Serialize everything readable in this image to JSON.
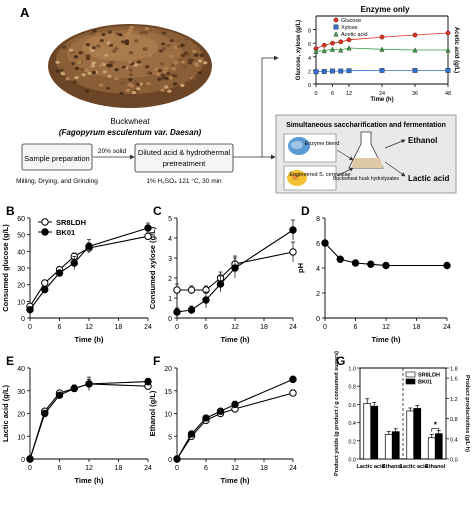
{
  "panel_a": {
    "letter": "A",
    "grain_name": "Buckwheat",
    "species": "(Fagopyrum esculentum var. Daesan)",
    "step1": "Sample preparation",
    "step1_sub": "Milling, Drying, and Grinding",
    "solid_label": "20% solid",
    "step2_line1": "Diluted acid & hydrothermal",
    "step2_line2": "pretreatment",
    "step2_sub": "1% H₂SO₄ 121 °C, 30 min",
    "ssf_title": "Simultaneous saccharification and fermentation",
    "enzyme_blend": "Enzyme blend",
    "engineered_strain": "Engineered S. cerevisiae",
    "hydrolysate_label": "Buckwheat husk hydrolysates",
    "product_ethanol": "Ethanol",
    "product_lactic": "Lactic acid",
    "colors": {
      "grain": "#7a5230",
      "inset_box": "#e8e8e8",
      "enzyme": "#6fa8dc",
      "yeast": "#f1c232"
    }
  },
  "chart_data": [
    {
      "id": "enzyme_only",
      "type": "line",
      "title": "Enzyme only",
      "xlabel": "Time (h)",
      "ylabel": "Glucose, xylose (g/L)",
      "ylabel2": "Acetic acid (g/L)",
      "xlim": [
        0,
        48
      ],
      "ylim": [
        0,
        10
      ],
      "xticks": [
        0,
        6,
        12,
        24,
        36,
        48
      ],
      "yticks": [
        0,
        2,
        4,
        6,
        8
      ],
      "series": [
        {
          "name": "Glucose",
          "color": "#e03020",
          "marker": "circle",
          "x": [
            0,
            3,
            6,
            9,
            12,
            24,
            36,
            48
          ],
          "values": [
            5.2,
            5.7,
            6.0,
            6.2,
            6.5,
            6.9,
            7.2,
            7.5
          ]
        },
        {
          "name": "Xylose",
          "color": "#3070d0",
          "marker": "square",
          "x": [
            0,
            3,
            6,
            9,
            12,
            24,
            36,
            48
          ],
          "values": [
            1.8,
            1.85,
            1.9,
            1.9,
            1.95,
            2.0,
            2.0,
            2.0
          ]
        },
        {
          "name": "Acetic acid",
          "color": "#3aa040",
          "marker": "triangle",
          "x": [
            0,
            3,
            6,
            9,
            12,
            24,
            36,
            48
          ],
          "values": [
            4.8,
            4.9,
            5.1,
            5.0,
            5.3,
            5.1,
            5.0,
            5.0
          ]
        }
      ]
    },
    {
      "id": "B",
      "letter": "B",
      "type": "line",
      "xlabel": "Time (h)",
      "ylabel": "Consumed glucose (g/L)",
      "xlim": [
        0,
        24
      ],
      "ylim": [
        0,
        60
      ],
      "xticks": [
        0,
        6,
        12,
        18,
        24
      ],
      "yticks": [
        0,
        10,
        20,
        30,
        40,
        50,
        60
      ],
      "series": [
        {
          "name": "SR8LDH",
          "marker": "open-circle",
          "x": [
            0,
            3,
            6,
            9,
            12,
            24
          ],
          "values": [
            7,
            21,
            29,
            37,
            42,
            49
          ],
          "err": [
            0,
            1.5,
            1.5,
            2,
            3,
            2
          ]
        },
        {
          "name": "BK01",
          "marker": "filled-circle",
          "x": [
            0,
            3,
            6,
            9,
            12,
            24
          ],
          "values": [
            5,
            17,
            27,
            33,
            43,
            54
          ],
          "err": [
            0,
            1.5,
            1.5,
            4,
            4,
            3
          ]
        }
      ]
    },
    {
      "id": "C",
      "letter": "C",
      "type": "line",
      "xlabel": "Time (h)",
      "ylabel": "Consumed xylose (g/L)",
      "xlim": [
        0,
        24
      ],
      "ylim": [
        0,
        5
      ],
      "xticks": [
        0,
        6,
        12,
        18,
        24
      ],
      "yticks": [
        0,
        1,
        2,
        3,
        4,
        5
      ],
      "series": [
        {
          "name": "SR8LDH",
          "marker": "open-circle",
          "x": [
            0,
            3,
            6,
            9,
            12,
            24
          ],
          "values": [
            1.4,
            1.4,
            1.4,
            2.0,
            2.7,
            3.3
          ],
          "err": [
            0.3,
            0.2,
            0.2,
            0.3,
            0.4,
            0.5
          ]
        },
        {
          "name": "BK01",
          "marker": "filled-circle",
          "x": [
            0,
            3,
            6,
            9,
            12,
            24
          ],
          "values": [
            0.3,
            0.4,
            0.9,
            1.7,
            2.5,
            4.4
          ],
          "err": [
            0.2,
            0.2,
            0.4,
            0.4,
            0.5,
            0.5
          ]
        }
      ]
    },
    {
      "id": "D",
      "letter": "D",
      "type": "line",
      "xlabel": "Time (h)",
      "ylabel": "pH",
      "xlim": [
        0,
        24
      ],
      "ylim": [
        0,
        8
      ],
      "xticks": [
        0,
        6,
        12,
        18,
        24
      ],
      "yticks": [
        0,
        2,
        4,
        6,
        8
      ],
      "series": [
        {
          "name": "BK01",
          "marker": "filled-circle",
          "x": [
            0,
            3,
            6,
            9,
            12,
            24
          ],
          "values": [
            6.0,
            4.7,
            4.4,
            4.3,
            4.2,
            4.2
          ],
          "err": [
            0,
            0,
            0,
            0,
            0,
            0
          ]
        }
      ]
    },
    {
      "id": "E",
      "letter": "E",
      "type": "line",
      "xlabel": "Time (h)",
      "ylabel": "Lactic acid (g/L)",
      "xlim": [
        0,
        24
      ],
      "ylim": [
        0,
        40
      ],
      "xticks": [
        0,
        6,
        12,
        18,
        24
      ],
      "yticks": [
        0,
        10,
        20,
        30,
        40
      ],
      "series": [
        {
          "name": "SR8LDH",
          "marker": "open-circle",
          "x": [
            0,
            3,
            6,
            9,
            12,
            24
          ],
          "values": [
            0,
            21,
            29,
            31,
            33,
            32
          ],
          "err": [
            0,
            1,
            1,
            1.5,
            2,
            1.5
          ]
        },
        {
          "name": "BK01",
          "marker": "filled-circle",
          "x": [
            0,
            3,
            6,
            9,
            12,
            24
          ],
          "values": [
            0,
            20,
            28,
            31,
            33,
            34
          ],
          "err": [
            0,
            1,
            1,
            1.5,
            3,
            1.5
          ]
        }
      ]
    },
    {
      "id": "F",
      "letter": "F",
      "type": "line",
      "xlabel": "Time (h)",
      "ylabel": "Ethanol (g/L)",
      "xlim": [
        0,
        24
      ],
      "ylim": [
        0,
        20
      ],
      "xticks": [
        0,
        6,
        12,
        18,
        24
      ],
      "yticks": [
        0,
        5,
        10,
        15,
        20
      ],
      "series": [
        {
          "name": "SR8LDH",
          "marker": "open-circle",
          "x": [
            0,
            3,
            6,
            9,
            12,
            24
          ],
          "values": [
            0,
            5,
            8.5,
            10,
            11,
            14.5
          ],
          "err": [
            0,
            0.3,
            0.5,
            0.5,
            0.7,
            0.7
          ]
        },
        {
          "name": "BK01",
          "marker": "filled-circle",
          "x": [
            0,
            3,
            6,
            9,
            12,
            24
          ],
          "values": [
            0,
            5.5,
            9,
            10.5,
            12,
            17.5
          ],
          "err": [
            0,
            0.3,
            0.5,
            0.5,
            0.7,
            0.7
          ]
        }
      ]
    },
    {
      "id": "G",
      "letter": "G",
      "type": "bar",
      "ylabel": "Product yields (g product / g consumed sugars)",
      "ylabel2": "Product productivities (g/L·h)",
      "ylim": [
        0,
        1.0
      ],
      "ylim2": [
        0,
        1.8
      ],
      "yticks": [
        0,
        0.2,
        0.4,
        0.6,
        0.8,
        1.0
      ],
      "yticks2": [
        0,
        0.4,
        0.8,
        1.2,
        1.6,
        1.8
      ],
      "categories": [
        "Lactic acid",
        "Ethanol",
        "Lactic acid",
        "Ethanol"
      ],
      "axis_of_category": [
        "left",
        "left",
        "right",
        "right"
      ],
      "significance": "*",
      "series": [
        {
          "name": "SR8LDH",
          "color": "#ffffff",
          "values": [
            0.61,
            0.27,
            0.95,
            0.42
          ],
          "err": [
            0.03,
            0.01,
            0.02,
            0.03
          ]
        },
        {
          "name": "BK01",
          "color": "#000000",
          "values": [
            0.58,
            0.3,
            1.0,
            0.5
          ],
          "err": [
            0.02,
            0.01,
            0.02,
            0.02
          ]
        }
      ]
    }
  ]
}
